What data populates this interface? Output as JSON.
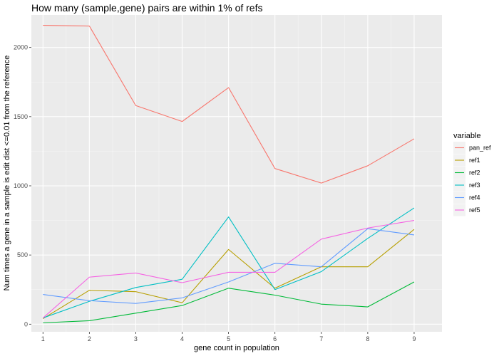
{
  "chart_data": {
    "type": "line",
    "title": "How many (sample,gene) pairs are within 1% of refs",
    "xlabel": "gene count in population",
    "ylabel": "Num times a gene in a sample is edit dist <=0.01  from the reference",
    "x": [
      1,
      2,
      3,
      4,
      5,
      6,
      7,
      8,
      9
    ],
    "x_ticks": [
      "1",
      "2",
      "3",
      "4",
      "5",
      "6",
      "7",
      "8",
      "9"
    ],
    "xlim": [
      0.75,
      9.6
    ],
    "y_ticks": [
      "0",
      "500",
      "1000",
      "1500",
      "2000"
    ],
    "y_tick_values": [
      0,
      500,
      1000,
      1500,
      2000
    ],
    "ylim": [
      -55,
      2235
    ],
    "grid": true,
    "legend": {
      "title": "variable",
      "position": "right"
    },
    "series": [
      {
        "name": "pan_ref",
        "color": "#F8766D",
        "values": [
          2160,
          2155,
          1580,
          1465,
          1710,
          1125,
          1020,
          1145,
          1340
        ]
      },
      {
        "name": "ref1",
        "color": "#B79F00",
        "values": [
          40,
          245,
          235,
          155,
          540,
          260,
          415,
          415,
          685
        ]
      },
      {
        "name": "ref2",
        "color": "#00BA38",
        "values": [
          10,
          25,
          80,
          135,
          260,
          210,
          145,
          125,
          305
        ]
      },
      {
        "name": "ref3",
        "color": "#00BFC4",
        "values": [
          45,
          165,
          265,
          325,
          775,
          250,
          380,
          620,
          840
        ]
      },
      {
        "name": "ref4",
        "color": "#619CFF",
        "values": [
          215,
          170,
          150,
          190,
          305,
          440,
          415,
          690,
          645
        ]
      },
      {
        "name": "ref5",
        "color": "#F564E3",
        "values": [
          45,
          340,
          370,
          300,
          375,
          375,
          615,
          695,
          750
        ]
      }
    ]
  }
}
